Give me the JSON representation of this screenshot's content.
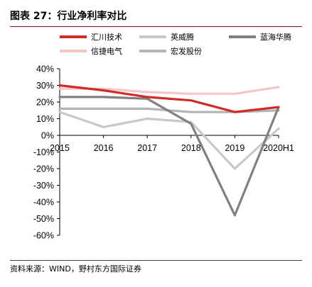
{
  "title": "图表 27：行业净利率对比",
  "source": "资料来源：WIND，野村东方国际证券",
  "colors": {
    "accent_rule": "#7f1a1a",
    "series": [
      "#d02b2b",
      "#c8c8c8",
      "#808080",
      "#f6c6c6",
      "#b3b3b3"
    ]
  },
  "chart_data": {
    "type": "line",
    "categories": [
      "2015",
      "2016",
      "2017",
      "2018",
      "2019",
      "2020H1"
    ],
    "y_tick_labels": [
      "40%",
      "30%",
      "20%",
      "10%",
      "0%",
      "-10%",
      "-20%",
      "-30%",
      "-40%",
      "-50%",
      "-60%"
    ],
    "ylim": [
      -0.6,
      0.4
    ],
    "grid": false,
    "legend_position": "top",
    "series": [
      {
        "name": "汇川技术",
        "color": "#d02b2b",
        "values": [
          0.3,
          0.27,
          0.23,
          0.21,
          0.14,
          0.17
        ]
      },
      {
        "name": "英威腾",
        "color": "#c8c8c8",
        "values": [
          0.14,
          0.05,
          0.1,
          0.08,
          -0.2,
          0.04
        ]
      },
      {
        "name": "蓝海华腾",
        "color": "#808080",
        "values": [
          0.23,
          0.23,
          0.22,
          0.07,
          -0.48,
          0.17
        ]
      },
      {
        "name": "信捷电气",
        "color": "#f6c6c6",
        "values": [
          0.28,
          0.28,
          0.26,
          0.25,
          0.25,
          0.29
        ]
      },
      {
        "name": "宏发股份",
        "color": "#b3b3b3",
        "values": [
          0.16,
          0.16,
          0.16,
          0.14,
          0.14,
          0.15
        ]
      }
    ]
  }
}
